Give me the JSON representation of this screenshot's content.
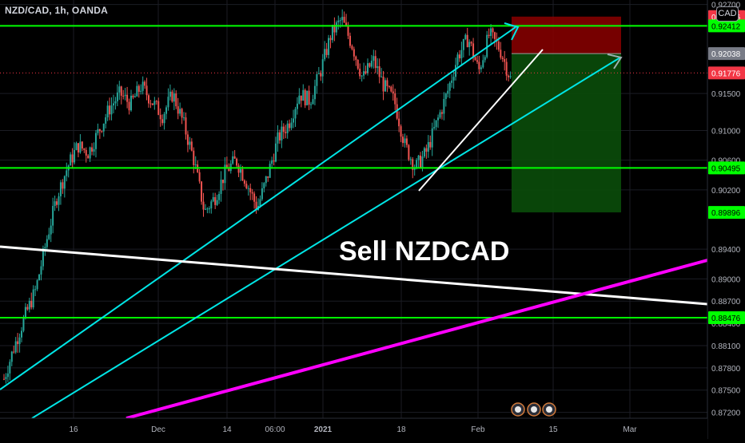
{
  "header": {
    "symbol": "NZD/CAD, 1h, OANDA"
  },
  "axis_tag": "CAD",
  "annotation": {
    "text": "Sell NZDCAD"
  },
  "colors": {
    "up_candle": "#26a69a",
    "down_candle": "#ef5350",
    "support_line": "#00ff00",
    "channel": "#00e5e5",
    "pink_trend": "#ff00ff",
    "white_trend": "#ffffff",
    "stop_zone": "#8b0000",
    "target_zone": "#0a4d0a"
  },
  "chart_data": {
    "type": "line",
    "series_kind": "candlestick",
    "ylim": [
      0.8712,
      0.9276
    ],
    "y_ticks": [
      "0.92700",
      "0.91500",
      "0.91000",
      "0.90600",
      "0.90200",
      "0.89400",
      "0.89000",
      "0.88700",
      "0.88400",
      "0.88100",
      "0.87800",
      "0.87500",
      "0.87200"
    ],
    "x_ticks": [
      "16",
      "Dec",
      "14",
      "06:00",
      "2021",
      "18",
      "Feb",
      "15",
      "Mar"
    ],
    "price_labels": [
      {
        "text": "0.92536",
        "value": 0.92536,
        "color": "#f23645"
      },
      {
        "text": "0.92412",
        "value": 0.92412,
        "color": "#00ff00"
      },
      {
        "text": "0.92038",
        "value": 0.92038,
        "color": "#787b86"
      },
      {
        "text": "0.91776",
        "value": 0.91776,
        "color": "#f23645"
      },
      {
        "text": "0.90495",
        "value": 0.90495,
        "color": "#00ff00"
      },
      {
        "text": "0.89896",
        "value": 0.89896,
        "color": "#00ff00"
      },
      {
        "text": "0.88476",
        "value": 0.88476,
        "color": "#00ff00"
      }
    ],
    "support_levels": [
      0.92412,
      0.90495,
      0.88476
    ],
    "current_price": 0.91776,
    "short_position": {
      "entry": 0.92038,
      "stop": 0.92536,
      "target": 0.89896
    },
    "price_path": [
      0.8765,
      0.881,
      0.885,
      0.8885,
      0.895,
      0.901,
      0.905,
      0.908,
      0.907,
      0.91,
      0.913,
      0.915,
      0.9135,
      0.916,
      0.914,
      0.912,
      0.915,
      0.911,
      0.906,
      0.899,
      0.901,
      0.9045,
      0.906,
      0.903,
      0.8995,
      0.904,
      0.909,
      0.911,
      0.915,
      0.914,
      0.918,
      0.923,
      0.925,
      0.9215,
      0.917,
      0.9195,
      0.916,
      0.914,
      0.908,
      0.905,
      0.907,
      0.911,
      0.915,
      0.92,
      0.9225,
      0.918,
      0.923,
      0.921,
      0.917
    ]
  }
}
